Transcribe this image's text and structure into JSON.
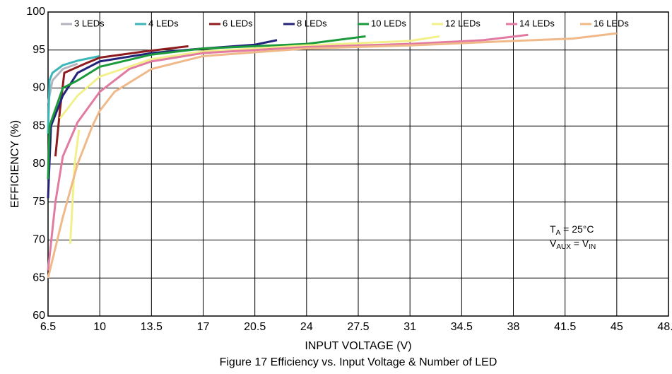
{
  "chart_data": {
    "type": "line",
    "title": "Figure 17  Efficiency vs. Input Voltage & Number of LED",
    "x_label": "INPUT VOLTAGE (V)",
    "y_label": "EFFICIENCY (%)",
    "xlim": [
      6.5,
      48.5
    ],
    "xticks": [
      6.5,
      10,
      13.5,
      17,
      20.5,
      24,
      27.5,
      31,
      34.5,
      38,
      41.5,
      45,
      48.5
    ],
    "ylim": [
      60,
      100
    ],
    "yticks": [
      60,
      65,
      70,
      75,
      80,
      85,
      90,
      95,
      100
    ],
    "grid": true,
    "legend": "top",
    "annotation": [
      {
        "main": "T",
        "sub": "A",
        "rest": " = 25°C"
      },
      {
        "main": "V",
        "sub": "AUX",
        "rest": " = V",
        "sub2": "IN"
      }
    ],
    "series": [
      {
        "name": "3 LEDs",
        "color": "#b4b4bc",
        "x": [
          6.5,
          6.8,
          7.5,
          8.5
        ],
        "values": [
          88,
          91,
          92.5,
          93.2
        ]
      },
      {
        "name": "4 LEDs",
        "color": "#3ab5b8",
        "x": [
          6.5,
          6.6,
          6.8,
          7.5,
          8.5,
          10
        ],
        "values": [
          84,
          91,
          92,
          93,
          93.6,
          94.2
        ]
      },
      {
        "name": "6 LEDs",
        "color": "#8e1c1e",
        "x": [
          7.0,
          7.3,
          7.6,
          9,
          10,
          13,
          16
        ],
        "values": [
          81,
          87,
          92,
          93.2,
          94,
          94.8,
          95.5
        ]
      },
      {
        "name": "8 LEDs",
        "color": "#23237a",
        "x": [
          6.5,
          6.7,
          7.5,
          8.5,
          10,
          13.5,
          17,
          20.5,
          22
        ],
        "values": [
          75.5,
          85,
          89,
          92,
          93.5,
          94.6,
          95.2,
          95.7,
          96.3
        ]
      },
      {
        "name": "10 LEDs",
        "color": "#1b9a3c",
        "x": [
          6.5,
          6.6,
          7.5,
          8.5,
          10,
          13.5,
          17,
          24,
          28
        ],
        "values": [
          78,
          85,
          90,
          91,
          92.8,
          94.4,
          95.2,
          95.8,
          96.8
        ]
      },
      {
        "name": "12 LEDs",
        "color": "#f2f08a",
        "x": [
          8.0,
          8.3,
          8.6,
          8.8,
          7.3,
          8.5,
          10,
          13.5,
          17,
          24,
          31,
          33
        ],
        "values": [
          69.5,
          80,
          84.5,
          null,
          86,
          89,
          91.5,
          93.8,
          94.8,
          95.6,
          96.2,
          96.8
        ]
      },
      {
        "name": "14 LEDs",
        "color": "#e27ba2",
        "x": [
          6.5,
          7,
          7.5,
          8.5,
          10,
          12,
          13.5,
          17,
          24,
          31,
          36,
          39
        ],
        "values": [
          66,
          75,
          81,
          85.5,
          89.5,
          92.5,
          93.5,
          94.6,
          95.4,
          95.8,
          96.3,
          97
        ]
      },
      {
        "name": "16 LEDs",
        "color": "#f0b98a",
        "x": [
          6.5,
          7.5,
          8.5,
          9.5,
          10,
          11,
          13.5,
          17,
          24,
          31,
          38,
          42,
          45
        ],
        "values": [
          65,
          73,
          80,
          85,
          87,
          89.5,
          92.5,
          94.2,
          95.2,
          95.6,
          96.2,
          96.5,
          97.2
        ]
      }
    ]
  }
}
